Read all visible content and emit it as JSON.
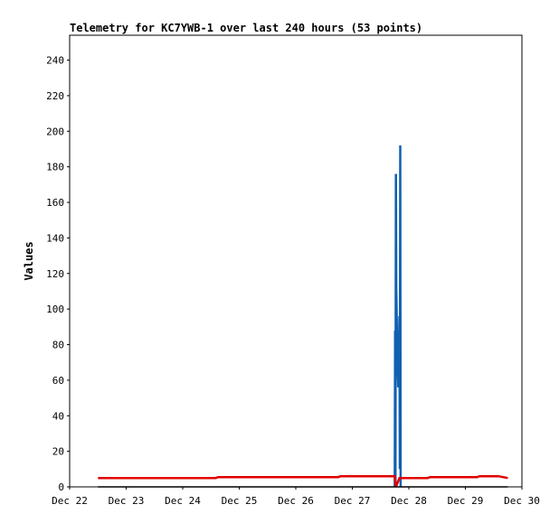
{
  "chart_data": {
    "type": "line",
    "title": "Telemetry for KC7YWB-1 over last 240 hours (53 points)",
    "ylabel": "Values",
    "xlabel": "",
    "ylim": [
      0,
      254
    ],
    "y_ticks": [
      0,
      20,
      40,
      60,
      80,
      100,
      120,
      140,
      160,
      180,
      200,
      220,
      240
    ],
    "x_ticks": [
      "Dec 22",
      "Dec 23",
      "Dec 24",
      "Dec 25",
      "Dec 26",
      "Dec 27",
      "Dec 28",
      "Dec 29",
      "Dec 30"
    ],
    "grid": false,
    "legend": "none",
    "series": [
      {
        "color": "#1060b0",
        "points": [
          {
            "x": "Dec 27 18:00",
            "y": 0
          },
          {
            "x": "Dec 27 18:10",
            "y": 88
          },
          {
            "x": "Dec 27 18:20",
            "y": 2
          },
          {
            "x": "Dec 27 18:30",
            "y": 176
          },
          {
            "x": "Dec 27 18:40",
            "y": 112
          },
          {
            "x": "Dec 27 18:50",
            "y": 100
          },
          {
            "x": "Dec 27 19:00",
            "y": 78
          },
          {
            "x": "Dec 27 19:30",
            "y": 56
          },
          {
            "x": "Dec 27 20:00",
            "y": 96
          },
          {
            "x": "Dec 27 20:10",
            "y": 10
          },
          {
            "x": "Dec 27 20:20",
            "y": 192
          },
          {
            "x": "Dec 27 20:30",
            "y": 0
          }
        ]
      },
      {
        "color": "#e00000",
        "points": [
          {
            "x": "Dec 22 12:00",
            "y": 5
          },
          {
            "x": "Dec 24 14:00",
            "y": 5
          },
          {
            "x": "Dec 24 15:00",
            "y": 5.5
          },
          {
            "x": "Dec 26 18:00",
            "y": 5.5
          },
          {
            "x": "Dec 26 19:00",
            "y": 6
          },
          {
            "x": "Dec 27 18:00",
            "y": 6
          },
          {
            "x": "Dec 27 18:30",
            "y": 0
          },
          {
            "x": "Dec 27 20:00",
            "y": 5
          },
          {
            "x": "Dec 28 08:00",
            "y": 5
          },
          {
            "x": "Dec 28 09:00",
            "y": 5.5
          },
          {
            "x": "Dec 29 05:00",
            "y": 5.5
          },
          {
            "x": "Dec 29 06:00",
            "y": 6
          },
          {
            "x": "Dec 29 14:00",
            "y": 6
          },
          {
            "x": "Dec 29 18:00",
            "y": 5
          }
        ]
      },
      {
        "color": "#000000",
        "points": [
          {
            "x": "Dec 22 12:00",
            "y": 0
          },
          {
            "x": "Dec 29 18:00",
            "y": 0
          }
        ]
      }
    ]
  }
}
